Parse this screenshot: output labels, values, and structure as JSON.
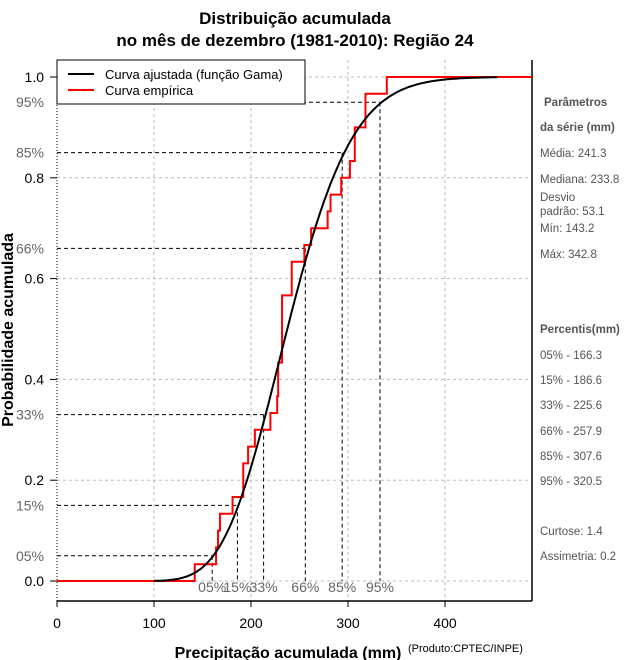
{
  "chart_data": {
    "type": "line",
    "title_line1": "Distribuição acumulada",
    "title_line2": "no mês de dezembro (1981-2010): Região 24",
    "xlabel": "Precipitação acumulada (mm)",
    "xlabel_note": "(Produto:CPTEC/INPE)",
    "ylabel": "Probabilidade acumulada",
    "xlim": [
      0,
      490
    ],
    "ylim": [
      0,
      1
    ],
    "xticks": [
      "0",
      "100",
      "200",
      "300",
      "400"
    ],
    "yticks": [
      "0.0",
      "0.2",
      "0.4",
      "0.6",
      "0.8",
      "1.0"
    ],
    "grid": true,
    "legend_position": "top-left",
    "legend": [
      "Curva ajustada (função Gama)",
      "Curva empírica"
    ],
    "colors": {
      "fitted": "#000000",
      "empirical": "#ff0000",
      "grid": "#bbbbbb",
      "percent_label": "#666666"
    },
    "gamma_fit": {
      "mean": 241.3,
      "sd": 53.1
    },
    "empirical_sorted_values": [
      142,
      164,
      166,
      168,
      181,
      192,
      192,
      197,
      204,
      220,
      227,
      228,
      228,
      232,
      232,
      232,
      232,
      242,
      242,
      255,
      262,
      279,
      282,
      293,
      302,
      307,
      307,
      318,
      318,
      340
    ],
    "percentile_guides": [
      {
        "label": "05%",
        "p": 0.05,
        "x": 160
      },
      {
        "label": "15%",
        "p": 0.15,
        "x": 186
      },
      {
        "label": "33%",
        "p": 0.33,
        "x": 213
      },
      {
        "label": "66%",
        "p": 0.66,
        "x": 256
      },
      {
        "label": "85%",
        "p": 0.85,
        "x": 294
      },
      {
        "label": "95%",
        "p": 0.95,
        "x": 333
      }
    ]
  },
  "sidebar": {
    "params_title1": "Parâmetros",
    "params_title2": "da série (mm)",
    "media": "Média: 241.3",
    "mediana": "Mediana: 233.8",
    "desvio1": "Desvio",
    "desvio2": "padrão: 53.1",
    "min": "Mín: 143.2",
    "max": "Máx: 342.8",
    "percentis_title": "Percentis(mm)",
    "percentis": [
      "05% - 166.3",
      "15% - 186.6",
      "33% - 225.6",
      "66% - 257.9",
      "85% - 307.6",
      "95% - 320.5"
    ],
    "curtose": "Curtose: 1.4",
    "assimetria": "Assimetria: 0.2"
  }
}
